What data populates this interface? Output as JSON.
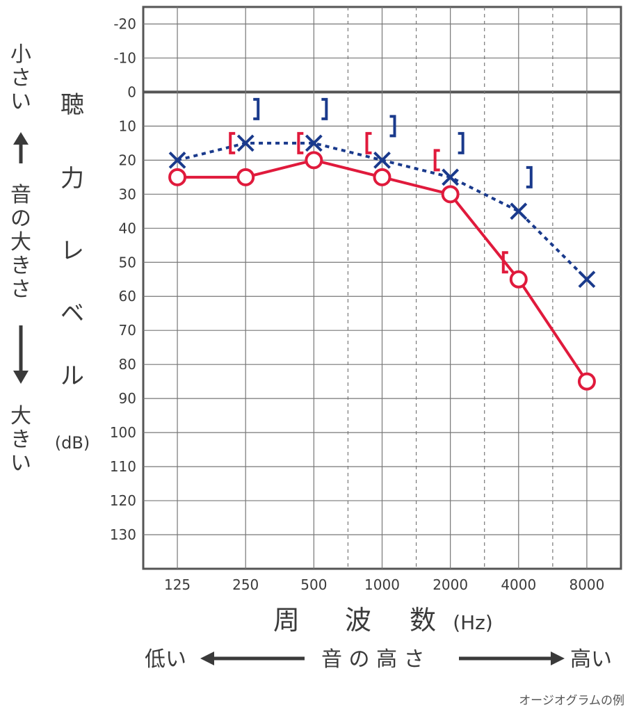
{
  "chart_data": {
    "type": "line",
    "x_categories": [
      "125",
      "250",
      "500",
      "1000",
      "2000",
      "4000",
      "8000"
    ],
    "y_ticks": [
      "-20",
      "-10",
      "0",
      "10",
      "20",
      "30",
      "40",
      "50",
      "60",
      "70",
      "80",
      "90",
      "100",
      "110",
      "120",
      "130"
    ],
    "ylim": [
      -25,
      140
    ],
    "y_inverted": true,
    "grid": true,
    "y_axis_label": [
      "聴",
      "力",
      "レ",
      "ベ",
      "ル",
      "(dB)"
    ],
    "x_axis_label": [
      "周",
      "波",
      "数",
      "(Hz)"
    ],
    "left_label": {
      "top": "小さい",
      "middle": "音の大きさ",
      "bottom": "大きい"
    },
    "bottom_label": {
      "left": "低い",
      "middle": "音 の 高 さ",
      "right": "高い"
    },
    "series": [
      {
        "marker": "circle",
        "color": "#e01a3c",
        "style": "solid",
        "values": [
          25,
          25,
          20,
          25,
          30,
          55,
          85
        ]
      },
      {
        "marker": "x",
        "color": "#1a3a8c",
        "style": "dotted",
        "values": [
          20,
          15,
          15,
          20,
          25,
          35,
          55
        ]
      }
    ],
    "bone_conduction": {
      "left_brackets": {
        "color": "#e01a3c",
        "glyph": "[",
        "points": [
          [
            1,
            15
          ],
          [
            2,
            15
          ],
          [
            3,
            15
          ],
          [
            4,
            20
          ],
          [
            5,
            50
          ]
        ]
      },
      "right_brackets": {
        "color": "#1a3a8c",
        "glyph": "]",
        "points": [
          [
            1,
            5
          ],
          [
            2,
            5
          ],
          [
            3,
            10
          ],
          [
            4,
            15
          ],
          [
            5,
            25
          ]
        ]
      }
    }
  },
  "caption": "オージオグラムの例"
}
